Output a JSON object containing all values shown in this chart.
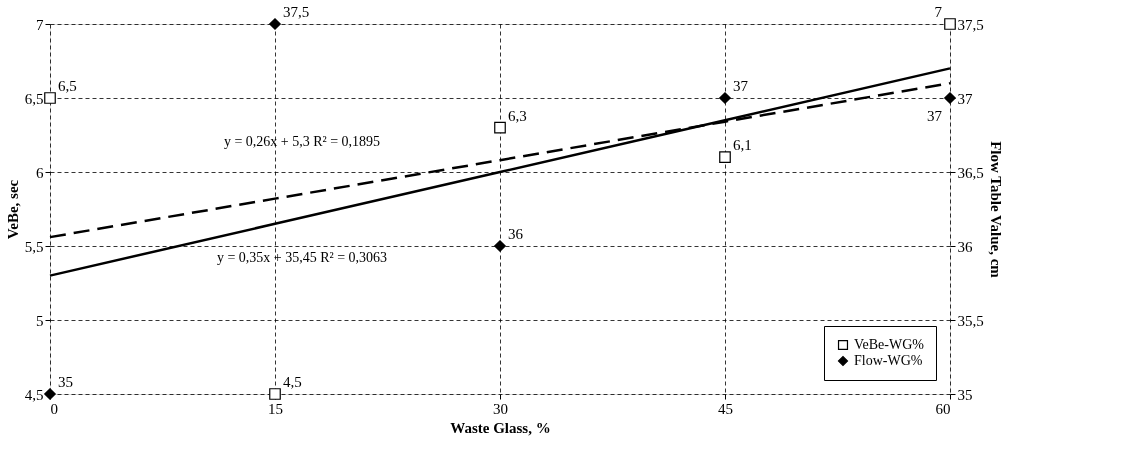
{
  "chart_data": {
    "type": "scatter",
    "xlabel": "Waste Glass, %",
    "ylabel": "VeBe, sec",
    "y2label": "Flow Table Value, cm",
    "x": [
      0,
      15,
      30,
      45,
      60
    ],
    "xlim": [
      0,
      60
    ],
    "xticks": [
      0,
      15,
      30,
      45,
      60
    ],
    "ylim": [
      4.5,
      7
    ],
    "yticks": [
      {
        "value": 4.5,
        "label": "4,5"
      },
      5,
      {
        "value": 5.5,
        "label": "5,5"
      },
      6,
      {
        "value": 6.5,
        "label": "6,5"
      },
      7
    ],
    "y2lim": [
      35,
      37.5
    ],
    "y2ticks": [
      35,
      {
        "value": 35.5,
        "label": "35,5"
      },
      36,
      {
        "value": 36.5,
        "label": "36,5"
      },
      37,
      {
        "value": 37.5,
        "label": "37,5"
      }
    ],
    "grid": true,
    "legend": "bottom right",
    "series": [
      {
        "name": "VeBe-WG%",
        "marker": "square",
        "color": "#000000",
        "values": [
          6.5,
          4.5,
          6.3,
          6.1,
          7
        ],
        "value_labels": [
          "6,5",
          "4,5",
          "6,3",
          "6,1",
          "7"
        ]
      },
      {
        "name": "Flow-WG%",
        "marker": "diamond",
        "color": "#000000",
        "axis": "y2",
        "values": [
          35,
          37.5,
          36,
          37,
          37
        ],
        "value_labels": [
          "35",
          "37,5",
          "36",
          "37",
          "37"
        ]
      },
      {
        "type": "line",
        "x": [
          0,
          15,
          30,
          45,
          60
        ],
        "values": [
          5.56,
          5.82,
          6.08,
          6.34,
          6.6
        ],
        "color": "#000000",
        "line_style": "dashed"
      },
      {
        "type": "line",
        "x": [
          0,
          15,
          30,
          45,
          60
        ],
        "values": [
          35.8,
          36.15,
          36.5,
          36.85,
          37.2
        ],
        "color": "#000000",
        "line_style": "solid",
        "axis": "y2"
      }
    ],
    "annotations": [
      "y = 0,26x + 5,3 R² = 0,1895",
      "y = 0,35x + 35,45 R² = 0,3063"
    ]
  }
}
